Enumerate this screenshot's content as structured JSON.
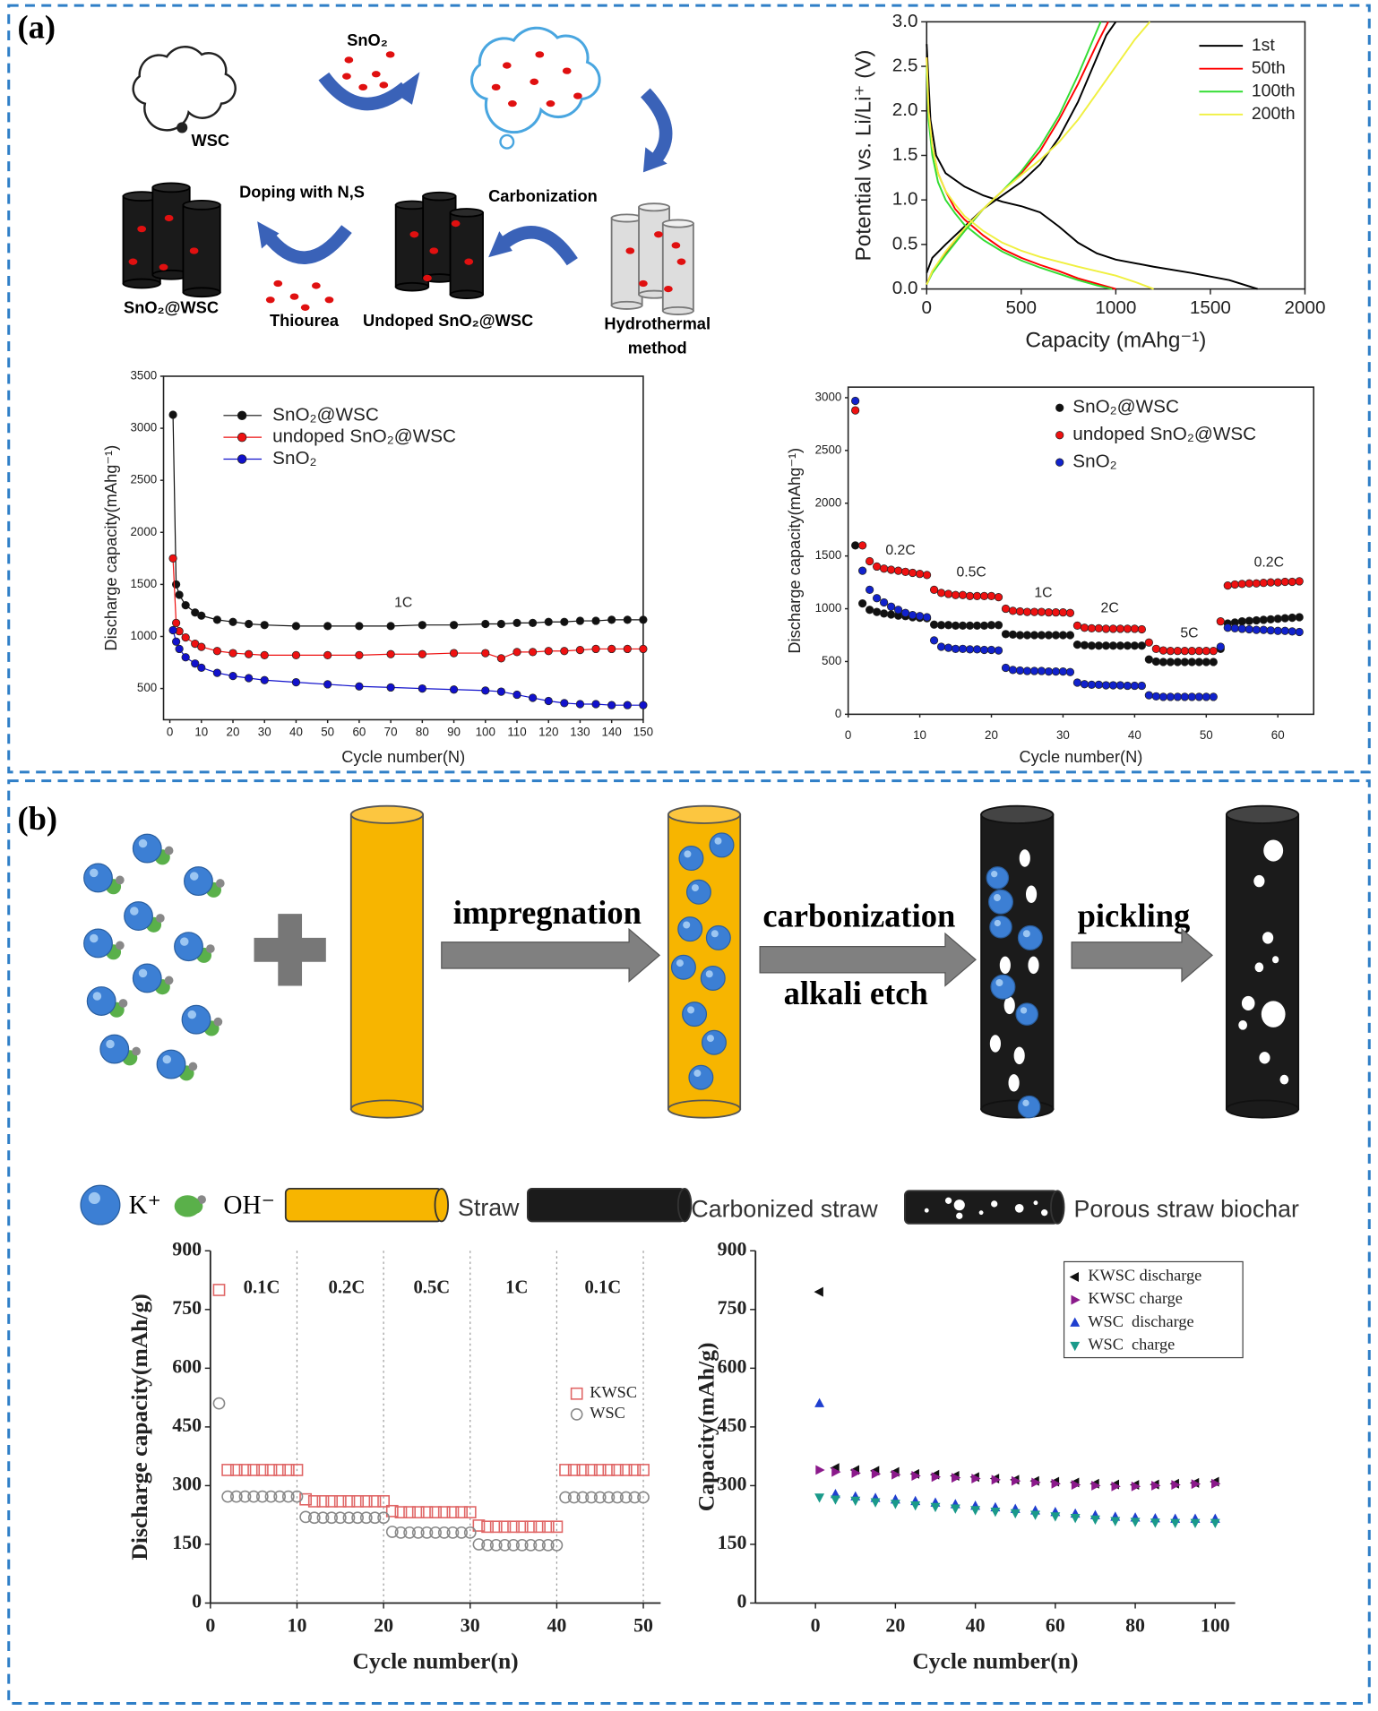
{
  "diagram_a": {
    "label": "(a)",
    "wsc": "WSC",
    "sno2": "SnO₂",
    "doping": "Doping with N,S",
    "carbonization": "Carbonization",
    "product": "SnO₂@WSC",
    "thiourea": "Thiourea",
    "undoped": "Undoped SnO₂@WSC",
    "hydrothermal": [
      "Hydrothermal",
      "method"
    ]
  },
  "diagram_b": {
    "label": "(b)",
    "impregnation": "impregnation",
    "carbonization": "carbonization",
    "alkali": "alkali etch",
    "pickling": "pickling",
    "legend": [
      "K⁺",
      "OH⁻",
      "Straw",
      "Carbonized straw",
      "Porous straw biochar"
    ]
  },
  "chart_data": [
    {
      "type": "line",
      "xlabel": "Capacity (mAhg⁻¹)",
      "ylabel": "Potential vs. Li/Li⁺ (V)",
      "xlim": [
        0,
        2000
      ],
      "ylim": [
        0,
        3
      ],
      "xticks": [
        0,
        500,
        1000,
        1500,
        2000
      ],
      "yticks": [
        {
          "value": 0,
          "label": "0.0"
        },
        0.5,
        {
          "value": 1,
          "label": "1.0"
        },
        1.5,
        {
          "value": 2,
          "label": "2.0"
        },
        2.5,
        {
          "value": 3,
          "label": "3.0"
        }
      ],
      "legend": "upper right",
      "series": [
        {
          "name": "1st",
          "color": "#000000",
          "x": [
            0,
            20,
            50,
            100,
            200,
            300,
            400,
            500,
            600,
            700,
            800,
            900,
            1000,
            1200,
            1400,
            1600,
            1750,
            null,
            0,
            30,
            100,
            200,
            300,
            400,
            500,
            600,
            700,
            800,
            900,
            950,
            1000
          ],
          "values": [
            2.75,
            1.9,
            1.5,
            1.3,
            1.15,
            1.05,
            0.98,
            0.93,
            0.86,
            0.7,
            0.52,
            0.4,
            0.33,
            0.25,
            0.18,
            0.1,
            0.0,
            null,
            0.18,
            0.35,
            0.5,
            0.7,
            0.9,
            1.05,
            1.2,
            1.4,
            1.7,
            2.1,
            2.6,
            2.85,
            3.0
          ]
        },
        {
          "name": "50th",
          "color": "#ff0000",
          "x": [
            0,
            10,
            30,
            60,
            100,
            150,
            200,
            300,
            400,
            500,
            600,
            700,
            800,
            900,
            1000,
            null,
            0,
            30,
            100,
            200,
            300,
            400,
            500,
            600,
            700,
            800,
            900,
            960
          ],
          "values": [
            2.6,
            2.0,
            1.6,
            1.3,
            1.1,
            0.9,
            0.78,
            0.6,
            0.45,
            0.35,
            0.27,
            0.2,
            0.12,
            0.06,
            0.0,
            null,
            0.05,
            0.2,
            0.4,
            0.65,
            0.9,
            1.1,
            1.3,
            1.55,
            1.9,
            2.3,
            2.75,
            3.0
          ]
        },
        {
          "name": "100th",
          "color": "#33dd33",
          "x": [
            0,
            10,
            30,
            60,
            100,
            150,
            200,
            300,
            400,
            500,
            600,
            700,
            800,
            900,
            980,
            null,
            0,
            30,
            100,
            200,
            300,
            400,
            500,
            600,
            700,
            800,
            900,
            920
          ],
          "values": [
            2.5,
            1.9,
            1.5,
            1.2,
            1.0,
            0.85,
            0.72,
            0.55,
            0.42,
            0.32,
            0.24,
            0.17,
            0.1,
            0.04,
            0.0,
            null,
            0.05,
            0.18,
            0.38,
            0.65,
            0.9,
            1.1,
            1.32,
            1.6,
            1.95,
            2.4,
            2.9,
            3.0
          ]
        },
        {
          "name": "200th",
          "color": "#f0f040",
          "x": [
            0,
            10,
            30,
            60,
            100,
            150,
            200,
            300,
            400,
            500,
            600,
            800,
            1000,
            1100,
            1200,
            null,
            0,
            30,
            100,
            200,
            300,
            400,
            500,
            600,
            700,
            800,
            900,
            1000,
            1100,
            1180
          ],
          "values": [
            2.6,
            2.0,
            1.6,
            1.3,
            1.1,
            0.95,
            0.82,
            0.65,
            0.52,
            0.43,
            0.36,
            0.25,
            0.15,
            0.08,
            0.0,
            null,
            0.05,
            0.2,
            0.42,
            0.68,
            0.9,
            1.1,
            1.28,
            1.45,
            1.65,
            1.9,
            2.2,
            2.5,
            2.8,
            3.0
          ]
        }
      ]
    },
    {
      "type": "line",
      "markers": "circle",
      "xlabel": "Cycle number(N)",
      "ylabel": "Discharge capacity(mAhg⁻¹)",
      "xlim": [
        -2,
        150
      ],
      "ylim": [
        200,
        3500
      ],
      "xticks": [
        0,
        10,
        20,
        30,
        40,
        50,
        60,
        70,
        80,
        90,
        100,
        110,
        120,
        130,
        140,
        150
      ],
      "yticks": [
        500,
        1000,
        1500,
        2000,
        2500,
        3000,
        3500
      ],
      "annotations": [
        "1C"
      ],
      "legend": "upper left",
      "x": [
        1,
        2,
        3,
        5,
        8,
        10,
        15,
        20,
        25,
        30,
        40,
        50,
        60,
        70,
        80,
        90,
        100,
        105,
        110,
        115,
        120,
        125,
        130,
        135,
        140,
        145,
        150
      ],
      "series": [
        {
          "name": "SnO₂@WSC",
          "color": "#111111",
          "values": [
            3130,
            1500,
            1400,
            1300,
            1230,
            1200,
            1160,
            1140,
            1120,
            1110,
            1100,
            1100,
            1100,
            1100,
            1110,
            1110,
            1120,
            1120,
            1130,
            1130,
            1140,
            1140,
            1150,
            1150,
            1160,
            1160,
            1160
          ]
        },
        {
          "name": "undoped SnO₂@WSC",
          "color": "#ee1111",
          "values": [
            1750,
            1130,
            1050,
            990,
            930,
            900,
            860,
            840,
            830,
            820,
            820,
            820,
            820,
            830,
            830,
            840,
            840,
            790,
            850,
            850,
            860,
            860,
            870,
            880,
            880,
            880,
            880
          ]
        },
        {
          "name": "SnO₂",
          "color": "#1111cc",
          "values": [
            1060,
            950,
            880,
            800,
            740,
            700,
            650,
            620,
            600,
            580,
            560,
            540,
            520,
            510,
            500,
            490,
            480,
            470,
            440,
            410,
            380,
            360,
            350,
            350,
            340,
            340,
            340
          ]
        }
      ]
    },
    {
      "type": "scatter",
      "marker": "circle",
      "xlabel": "Cycle number(N)",
      "ylabel": "Discharge capacity(mAhg⁻¹)",
      "xlim": [
        0,
        65
      ],
      "ylim": [
        0,
        3100
      ],
      "xticks": [
        0,
        10,
        20,
        30,
        40,
        50,
        60
      ],
      "yticks": [
        0,
        500,
        1000,
        1500,
        2000,
        2500,
        3000
      ],
      "annotations": [
        "0.2C",
        "0.5C",
        "1C",
        "2C",
        "5C",
        "0.2C"
      ],
      "legend": "upper right",
      "x": [
        1,
        2,
        3,
        4,
        5,
        6,
        7,
        8,
        9,
        10,
        11,
        12,
        13,
        14,
        15,
        16,
        17,
        18,
        19,
        20,
        21,
        22,
        23,
        24,
        25,
        26,
        27,
        28,
        29,
        30,
        31,
        32,
        33,
        34,
        35,
        36,
        37,
        38,
        39,
        40,
        41,
        42,
        43,
        44,
        45,
        46,
        47,
        48,
        49,
        50,
        51,
        52,
        53,
        54,
        55,
        56,
        57,
        58,
        59,
        60,
        61,
        62,
        63
      ],
      "series": [
        {
          "name": "SnO₂@WSC",
          "color": "#111111",
          "values": [
            1600,
            1050,
            990,
            970,
            955,
            945,
            935,
            930,
            920,
            915,
            910,
            850,
            845,
            845,
            840,
            840,
            840,
            840,
            840,
            845,
            845,
            760,
            755,
            750,
            750,
            750,
            750,
            750,
            750,
            750,
            750,
            660,
            655,
            650,
            650,
            650,
            650,
            650,
            650,
            650,
            650,
            520,
            500,
            495,
            495,
            495,
            495,
            495,
            495,
            495,
            495,
            620,
            860,
            870,
            880,
            885,
            890,
            895,
            900,
            905,
            910,
            915,
            920
          ]
        },
        {
          "name": "undoped SnO₂@WSC",
          "color": "#ee1111",
          "values": [
            2880,
            1600,
            1450,
            1400,
            1380,
            1370,
            1360,
            1350,
            1340,
            1330,
            1320,
            1180,
            1150,
            1140,
            1130,
            1130,
            1120,
            1120,
            1120,
            1120,
            1110,
            1000,
            980,
            975,
            970,
            970,
            970,
            965,
            965,
            965,
            960,
            840,
            820,
            815,
            815,
            810,
            810,
            810,
            810,
            810,
            805,
            680,
            620,
            605,
            600,
            600,
            600,
            600,
            600,
            600,
            600,
            880,
            1220,
            1230,
            1235,
            1240,
            1240,
            1245,
            1250,
            1250,
            1255,
            1255,
            1260
          ]
        },
        {
          "name": "SnO₂",
          "color": "#1122cc",
          "values": [
            2970,
            1360,
            1180,
            1100,
            1060,
            1020,
            990,
            960,
            940,
            930,
            920,
            700,
            640,
            630,
            620,
            620,
            615,
            615,
            610,
            610,
            605,
            440,
            420,
            415,
            410,
            410,
            410,
            405,
            405,
            405,
            400,
            300,
            285,
            280,
            280,
            275,
            275,
            275,
            270,
            270,
            270,
            180,
            170,
            165,
            165,
            165,
            165,
            165,
            165,
            165,
            165,
            640,
            820,
            815,
            810,
            805,
            800,
            800,
            795,
            790,
            790,
            785,
            780
          ]
        }
      ]
    },
    {
      "type": "scatter",
      "xlabel": "Cycle number(n)",
      "ylabel": "Discharge capacity(mAh/g)",
      "xlim": [
        0,
        52
      ],
      "ylim": [
        0,
        900
      ],
      "xticks": [
        0,
        10,
        20,
        30,
        40,
        50
      ],
      "yticks": [
        0,
        150,
        300,
        450,
        600,
        750,
        900
      ],
      "vlines": [
        10,
        20,
        30,
        40,
        50
      ],
      "annotations": [
        "0.1C",
        "0.2C",
        "0.5C",
        "1C",
        "0.1C"
      ],
      "legend": "center",
      "x": [
        1,
        2,
        3,
        4,
        5,
        6,
        7,
        8,
        9,
        10,
        11,
        12,
        13,
        14,
        15,
        16,
        17,
        18,
        19,
        20,
        21,
        22,
        23,
        24,
        25,
        26,
        27,
        28,
        29,
        30,
        31,
        32,
        33,
        34,
        35,
        36,
        37,
        38,
        39,
        40,
        41,
        42,
        43,
        44,
        45,
        46,
        47,
        48,
        49,
        50
      ],
      "series": [
        {
          "name": "KWSC",
          "color": "#e06666",
          "marker": "square-open",
          "values": [
            800,
            340,
            340,
            340,
            340,
            340,
            340,
            340,
            340,
            340,
            265,
            260,
            260,
            260,
            260,
            260,
            260,
            260,
            260,
            260,
            235,
            232,
            232,
            232,
            232,
            232,
            232,
            232,
            232,
            232,
            198,
            195,
            195,
            195,
            195,
            195,
            195,
            195,
            195,
            195,
            340,
            340,
            340,
            340,
            340,
            340,
            340,
            340,
            340,
            340
          ]
        },
        {
          "name": "WSC",
          "color": "#888888",
          "marker": "circle-open",
          "values": [
            510,
            272,
            272,
            272,
            272,
            272,
            272,
            272,
            272,
            272,
            220,
            218,
            218,
            218,
            218,
            218,
            218,
            218,
            218,
            218,
            182,
            180,
            180,
            180,
            180,
            180,
            180,
            180,
            180,
            180,
            150,
            148,
            148,
            148,
            148,
            148,
            148,
            148,
            148,
            148,
            270,
            270,
            270,
            270,
            270,
            270,
            270,
            270,
            270,
            270
          ]
        }
      ]
    },
    {
      "type": "scatter",
      "xlabel": "Cycle number(n)",
      "ylabel": "Capacity(mAh/g)",
      "xlim": [
        -15,
        105
      ],
      "ylim": [
        0,
        900
      ],
      "xticks": [
        0,
        20,
        40,
        60,
        80,
        100
      ],
      "yticks": [
        0,
        150,
        300,
        450,
        600,
        750,
        900
      ],
      "legend": "upper right",
      "x": [
        1,
        5,
        10,
        15,
        20,
        25,
        30,
        35,
        40,
        45,
        50,
        55,
        60,
        65,
        70,
        75,
        80,
        85,
        90,
        95,
        100
      ],
      "series": [
        {
          "name": "KWSC discharge",
          "color": "#111111",
          "marker": "tri-left",
          "values": [
            795,
            345,
            340,
            338,
            335,
            330,
            328,
            325,
            322,
            318,
            315,
            312,
            310,
            308,
            305,
            303,
            302,
            303,
            305,
            307,
            310
          ]
        },
        {
          "name": "KWSC charge",
          "color": "#8b1a8b",
          "marker": "tri-right",
          "values": [
            340,
            335,
            332,
            330,
            328,
            325,
            322,
            320,
            318,
            315,
            312,
            308,
            305,
            302,
            300,
            298,
            298,
            300,
            302,
            304,
            305
          ]
        },
        {
          "name": "WSC  discharge",
          "color": "#1f3fcf",
          "marker": "tri-up",
          "values": [
            510,
            278,
            272,
            268,
            264,
            260,
            256,
            252,
            248,
            244,
            240,
            236,
            232,
            228,
            224,
            220,
            218,
            216,
            215,
            215,
            215
          ]
        },
        {
          "name": "WSC  charge",
          "color": "#1a9a8a",
          "marker": "tri-down",
          "values": [
            270,
            265,
            262,
            258,
            254,
            250,
            246,
            242,
            238,
            234,
            230,
            226,
            222,
            218,
            214,
            210,
            208,
            206,
            205,
            205,
            205
          ]
        }
      ]
    }
  ]
}
